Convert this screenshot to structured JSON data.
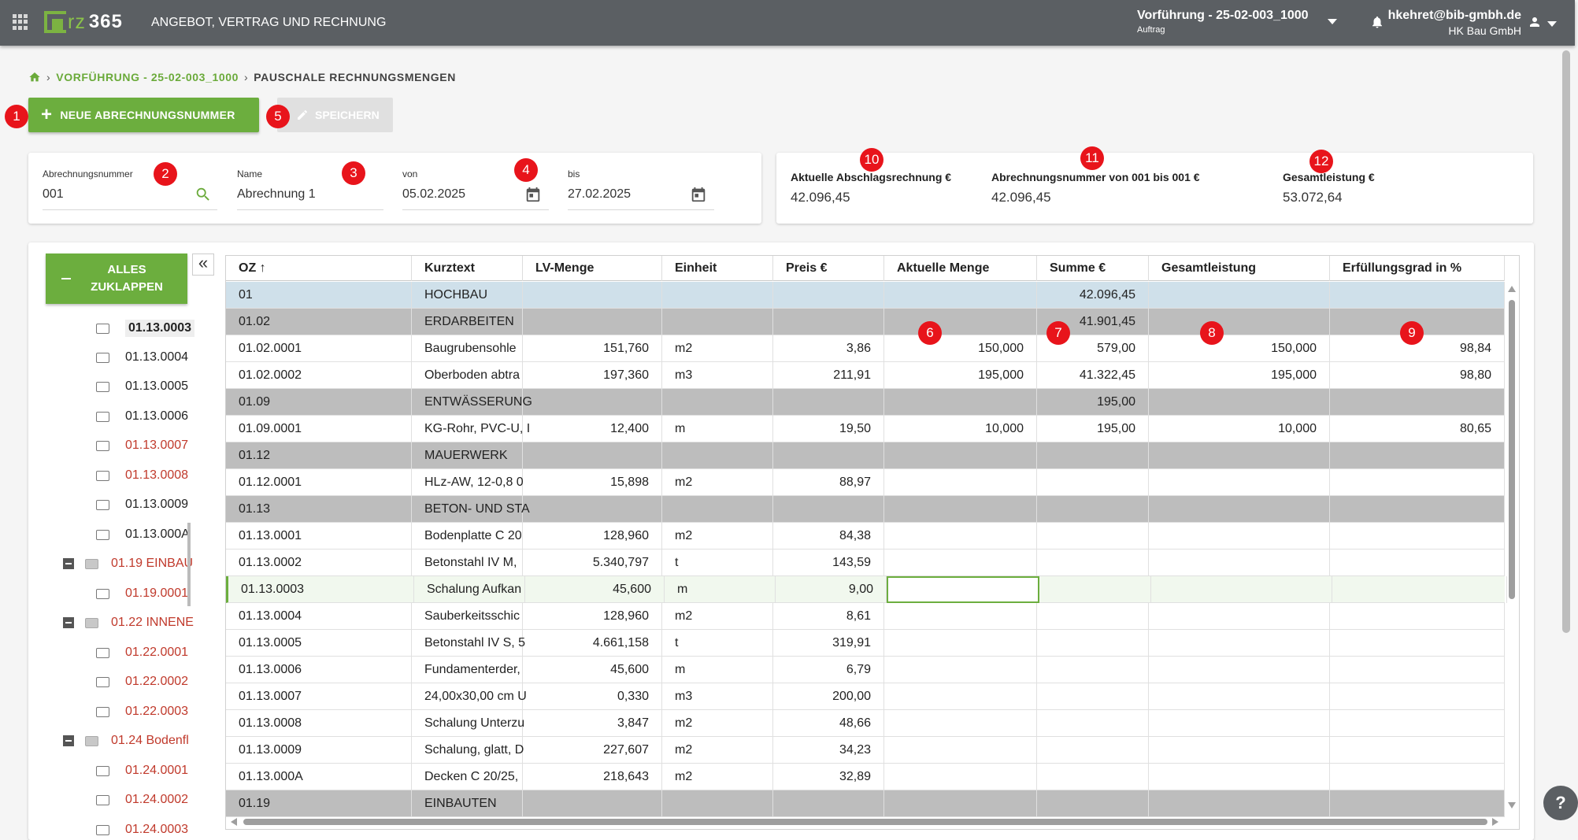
{
  "topbar": {
    "app_title": "ANGEBOT, VERTRAG UND RECHNUNG",
    "logo_text": "rz",
    "logo_num": "365",
    "project_title": "Vorführung - 25-02-003_1000",
    "project_subtitle": "Auftrag",
    "user_email": "hkehret@bib-gmbh.de",
    "user_company": "HK Bau GmbH"
  },
  "breadcrumb": {
    "project": "VORFÜHRUNG - 25-02-003_1000",
    "current": "PAUSCHALE RECHNUNGSMENGEN"
  },
  "toolbar": {
    "new_label": "NEUE ABRECHNUNGSNUMMER",
    "save_label": "SPEICHERN"
  },
  "filters": {
    "abrechnungsnummer_label": "Abrechnungsnummer",
    "abrechnungsnummer_value": "001",
    "name_label": "Name",
    "name_value": "Abrechnung 1",
    "von_label": "von",
    "von_value": "05.02.2025",
    "bis_label": "bis",
    "bis_value": "27.02.2025"
  },
  "summary": {
    "abschlag_label": "Aktuelle Abschlagsrechnung €",
    "abschlag_value": "42.096,45",
    "range_label": "Abrechnungsnummer von 001 bis 001 €",
    "range_value": "42.096,45",
    "gesamt_label": "Gesamtleistung €",
    "gesamt_value": "53.072,64"
  },
  "markers": [
    "1",
    "2",
    "3",
    "4",
    "5",
    "6",
    "7",
    "8",
    "9",
    "10",
    "11",
    "12"
  ],
  "tree": {
    "collapse_label_1": "ALLES",
    "collapse_label_2": "ZUKLAPPEN",
    "nodes": [
      {
        "label": "01.13.0003",
        "color": "#222222"
      },
      {
        "label": "01.13.0004",
        "color": "#222222"
      },
      {
        "label": "01.13.0005",
        "color": "#222222"
      },
      {
        "label": "01.13.0006",
        "color": "#222222"
      },
      {
        "label": "01.13.0007",
        "color": "#c0392b"
      },
      {
        "label": "01.13.0008",
        "color": "#c0392b"
      },
      {
        "label": "01.13.0009",
        "color": "#222222"
      },
      {
        "label": "01.13.000A",
        "color": "#222222"
      },
      {
        "label": "01.19 EINBAU",
        "color": "#c0392b"
      },
      {
        "label": "01.19.0001",
        "color": "#c0392b"
      },
      {
        "label": "01.22 INNENE",
        "color": "#c0392b"
      },
      {
        "label": "01.22.0001",
        "color": "#c0392b"
      },
      {
        "label": "01.22.0002",
        "color": "#c0392b"
      },
      {
        "label": "01.22.0003",
        "color": "#c0392b"
      },
      {
        "label": "01.24 Bodenfl",
        "color": "#c0392b"
      },
      {
        "label": "01.24.0001",
        "color": "#c0392b"
      },
      {
        "label": "01.24.0002",
        "color": "#c0392b"
      },
      {
        "label": "01.24.0003",
        "color": "#c0392b"
      }
    ]
  },
  "grid": {
    "columns": [
      "OZ",
      "Kurztext",
      "LV-Menge",
      "Einheit",
      "Preis €",
      "Aktuelle Menge",
      "Summe €",
      "Gesamtleistung",
      "Erfüllungsgrad in %"
    ],
    "rows": [
      {
        "type": "hi",
        "cells": [
          "01",
          "HOCHBAU",
          "",
          "",
          "",
          "",
          "42.096,45",
          "",
          ""
        ]
      },
      {
        "type": "grp",
        "cells": [
          "01.02",
          "ERDARBEITEN",
          "",
          "",
          "",
          "",
          "41.901,45",
          "",
          ""
        ]
      },
      {
        "type": "item",
        "cells": [
          "01.02.0001",
          "Baugrubensohle",
          "151,760",
          "m2",
          "3,86",
          "150,000",
          "579,00",
          "150,000",
          "98,84"
        ]
      },
      {
        "type": "item",
        "cells": [
          "01.02.0002",
          "Oberboden abtra",
          "197,360",
          "m3",
          "211,91",
          "195,000",
          "41.322,45",
          "195,000",
          "98,80"
        ]
      },
      {
        "type": "grp",
        "cells": [
          "01.09",
          "ENTWÄSSERUNG",
          "",
          "",
          "",
          "",
          "195,00",
          "",
          ""
        ]
      },
      {
        "type": "item",
        "cells": [
          "01.09.0001",
          "KG-Rohr, PVC-U, I",
          "12,400",
          "m",
          "19,50",
          "10,000",
          "195,00",
          "10,000",
          "80,65"
        ]
      },
      {
        "type": "grp",
        "cells": [
          "01.12",
          "MAUERWERK",
          "",
          "",
          "",
          "",
          "",
          "",
          ""
        ]
      },
      {
        "type": "item",
        "cells": [
          "01.12.0001",
          "HLz-AW, 12-0,8  0",
          "15,898",
          "m2",
          "88,97",
          "",
          "",
          "",
          ""
        ]
      },
      {
        "type": "grp",
        "cells": [
          "01.13",
          "BETON- UND STA",
          "",
          "",
          "",
          "",
          "",
          "",
          ""
        ]
      },
      {
        "type": "item",
        "cells": [
          "01.13.0001",
          "Bodenplatte C 20",
          "128,960",
          "m2",
          "84,38",
          "",
          "",
          "",
          ""
        ]
      },
      {
        "type": "item",
        "cells": [
          "01.13.0002",
          "Betonstahl IV M,",
          "5.340,797",
          "t",
          "143,59",
          "",
          "",
          "",
          ""
        ]
      },
      {
        "type": "sel",
        "cells": [
          "01.13.0003",
          "Schalung Aufkan",
          "45,600",
          "m",
          "9,00",
          "",
          "",
          "",
          ""
        ]
      },
      {
        "type": "item",
        "cells": [
          "01.13.0004",
          "Sauberkeitsschic",
          "128,960",
          "m2",
          "8,61",
          "",
          "",
          "",
          ""
        ]
      },
      {
        "type": "item",
        "cells": [
          "01.13.0005",
          "Betonstahl IV S, 5",
          "4.661,158",
          "t",
          "319,91",
          "",
          "",
          "",
          ""
        ]
      },
      {
        "type": "item",
        "cells": [
          "01.13.0006",
          "Fundamenterder,",
          "45,600",
          "m",
          "6,79",
          "",
          "",
          "",
          ""
        ]
      },
      {
        "type": "item",
        "cells": [
          "01.13.0007",
          "24,00x30,00 cm U",
          "0,330",
          "m3",
          "200,00",
          "",
          "",
          "",
          ""
        ]
      },
      {
        "type": "item",
        "cells": [
          "01.13.0008",
          "Schalung Unterzu",
          "3,847",
          "m2",
          "48,66",
          "",
          "",
          "",
          ""
        ]
      },
      {
        "type": "item",
        "cells": [
          "01.13.0009",
          "Schalung, glatt, D",
          "227,607",
          "m2",
          "34,23",
          "",
          "",
          "",
          ""
        ]
      },
      {
        "type": "item",
        "cells": [
          "01.13.000A",
          "Decken C 20/25,",
          "218,643",
          "m2",
          "32,89",
          "",
          "",
          "",
          ""
        ]
      },
      {
        "type": "grp",
        "cells": [
          "01.19",
          "EINBAUTEN",
          "",
          "",
          "",
          "",
          "",
          "",
          ""
        ]
      }
    ]
  },
  "help_label": "?"
}
